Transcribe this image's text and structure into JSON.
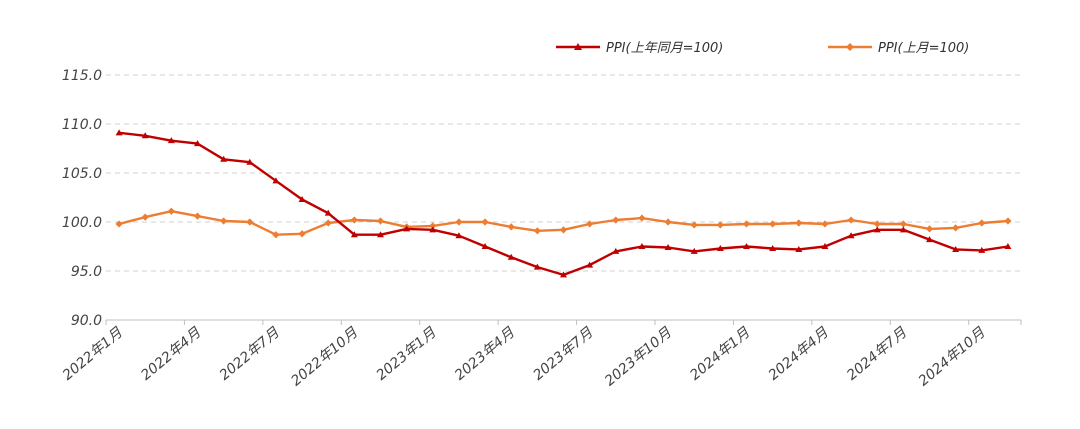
{
  "chart_data": {
    "type": "line",
    "title": "",
    "xlabel": "",
    "ylabel": "",
    "ylim": [
      90,
      115
    ],
    "yticks": [
      "90.0",
      "95.0",
      "100.0",
      "105.0",
      "110.0",
      "115.0"
    ],
    "grid": true,
    "legend_position": "top-right",
    "x": [
      "2022年1月",
      "2022年2月",
      "2022年3月",
      "2022年4月",
      "2022年5月",
      "2022年6月",
      "2022年7月",
      "2022年8月",
      "2022年9月",
      "2022年10月",
      "2022年11月",
      "2022年12月",
      "2023年1月",
      "2023年2月",
      "2023年3月",
      "2023年4月",
      "2023年5月",
      "2023年6月",
      "2023年7月",
      "2023年8月",
      "2023年9月",
      "2023年10月",
      "2023年11月",
      "2023年12月",
      "2024年1月",
      "2024年2月",
      "2024年3月",
      "2024年4月",
      "2024年5月",
      "2024年6月",
      "2024年7月",
      "2024年8月",
      "2024年9月",
      "2024年10月",
      "2024年11月"
    ],
    "xtick_labels": [
      "2022年1月",
      "2022年4月",
      "2022年7月",
      "2022年10月",
      "2023年1月",
      "2023年4月",
      "2023年7月",
      "2023年10月",
      "2024年1月",
      "2024年4月",
      "2024年7月",
      "2024年10月"
    ],
    "series": [
      {
        "name": "PPI(上年同月=100)",
        "color": "#c00000",
        "marker": "triangle",
        "values": [
          109.1,
          108.8,
          108.3,
          108.0,
          106.4,
          106.1,
          104.2,
          102.3,
          100.9,
          98.7,
          98.7,
          99.3,
          99.2,
          98.6,
          97.5,
          96.4,
          95.4,
          94.6,
          95.6,
          97.0,
          97.5,
          97.4,
          97.0,
          97.3,
          97.5,
          97.3,
          97.2,
          97.5,
          98.6,
          99.2,
          99.2,
          98.2,
          97.2,
          97.1,
          97.5
        ]
      },
      {
        "name": "PPI(上月=100)",
        "color": "#ed7d31",
        "marker": "diamond",
        "values": [
          99.8,
          100.5,
          101.1,
          100.6,
          100.1,
          100.0,
          98.7,
          98.8,
          99.9,
          100.2,
          100.1,
          99.5,
          99.6,
          100.0,
          100.0,
          99.5,
          99.1,
          99.2,
          99.8,
          100.2,
          100.4,
          100.0,
          99.7,
          99.7,
          99.8,
          99.8,
          99.9,
          99.8,
          100.2,
          99.8,
          99.8,
          99.3,
          99.4,
          99.9,
          100.1
        ]
      }
    ]
  }
}
